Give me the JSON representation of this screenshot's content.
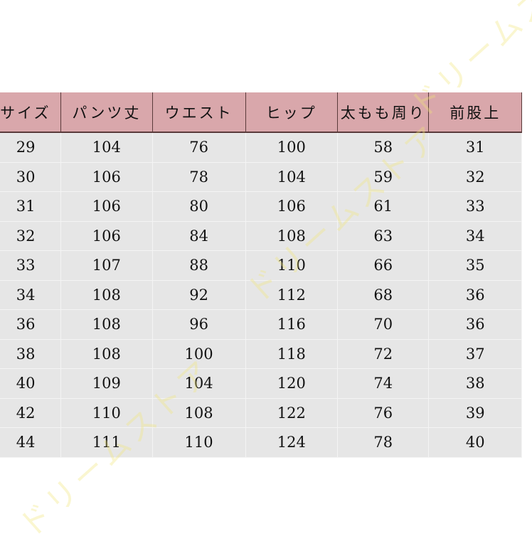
{
  "table": {
    "headers": [
      "サイズ",
      "パンツ丈",
      "ウエスト",
      "ヒップ",
      "太もも周り",
      "前股上"
    ],
    "rows": [
      [
        "29",
        "104",
        "76",
        "100",
        "58",
        "31"
      ],
      [
        "30",
        "106",
        "78",
        "104",
        "59",
        "32"
      ],
      [
        "31",
        "106",
        "80",
        "106",
        "61",
        "33"
      ],
      [
        "32",
        "106",
        "84",
        "108",
        "63",
        "34"
      ],
      [
        "33",
        "107",
        "88",
        "110",
        "66",
        "35"
      ],
      [
        "34",
        "108",
        "92",
        "112",
        "68",
        "36"
      ],
      [
        "36",
        "108",
        "96",
        "116",
        "70",
        "36"
      ],
      [
        "38",
        "108",
        "100",
        "118",
        "72",
        "37"
      ],
      [
        "40",
        "109",
        "104",
        "120",
        "74",
        "38"
      ],
      [
        "42",
        "110",
        "108",
        "122",
        "76",
        "39"
      ],
      [
        "44",
        "111",
        "110",
        "124",
        "78",
        "40"
      ]
    ],
    "header_color": "#d9a7ab",
    "row_color": "#e6e6e6"
  },
  "watermark": "ドリームストア"
}
